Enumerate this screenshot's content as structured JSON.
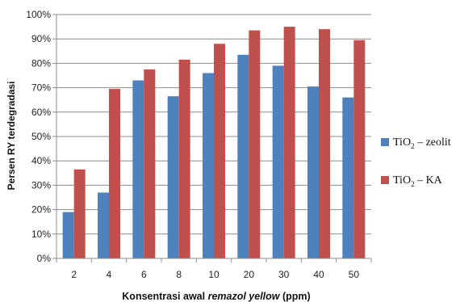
{
  "chart_data": {
    "type": "bar",
    "categories": [
      "2",
      "4",
      "6",
      "8",
      "10",
      "20",
      "30",
      "40",
      "50"
    ],
    "series": [
      {
        "name": "TiO2 – zeolit",
        "name_parts": [
          "TiO",
          "2",
          " – zeolit"
        ],
        "color": "#4f81bd",
        "values": [
          19,
          27,
          73,
          66.5,
          76,
          83.5,
          79,
          70.5,
          66
        ]
      },
      {
        "name": "TiO2 – KA",
        "name_parts": [
          "TiO",
          "2",
          " – KA"
        ],
        "color": "#c0504d",
        "values": [
          36.5,
          69.5,
          77.5,
          81.5,
          88,
          93.5,
          95,
          94,
          89.5
        ]
      }
    ],
    "ylim": [
      0,
      100
    ],
    "yticks": [
      "0%",
      "10%",
      "20%",
      "30%",
      "40%",
      "50%",
      "60%",
      "70%",
      "80%",
      "90%",
      "100%"
    ],
    "ylabel": "Persen RY terdegradasi",
    "xlabel_parts": [
      "Konsentrasi awal ",
      "remazol yellow",
      " (ppm)"
    ],
    "grid": true,
    "legend": "right"
  }
}
